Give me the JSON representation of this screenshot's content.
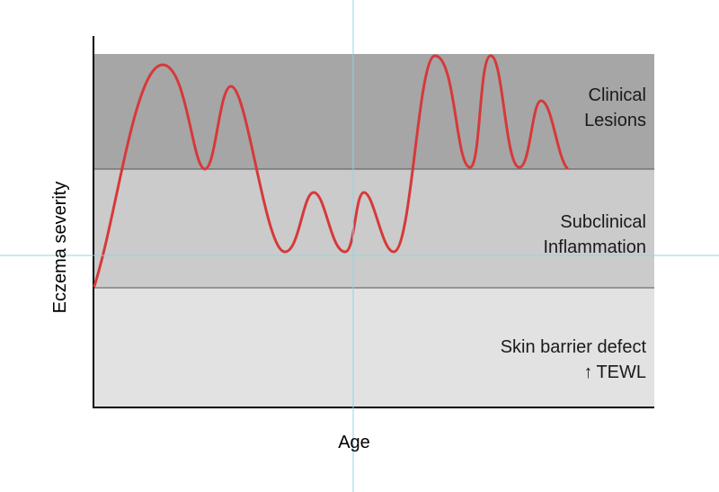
{
  "axes": {
    "ylabel": "Eczema severity",
    "xlabel": "Age"
  },
  "zones": {
    "top": {
      "line1": "Clinical",
      "line2": "Lesions"
    },
    "middle": {
      "line1": "Subclinical",
      "line2": "Inflammation"
    },
    "bottom": {
      "line1": "Skin barrier defect",
      "line2": "TEWL",
      "arrow_symbol": "↑"
    }
  },
  "colors": {
    "zone_top": "#a6a6a6",
    "zone_middle": "#cbcbcb",
    "zone_bottom": "#e2e2e2",
    "curve": "#d6393a",
    "guide_lines": "#8fd6e3",
    "axis": "#000000"
  }
}
